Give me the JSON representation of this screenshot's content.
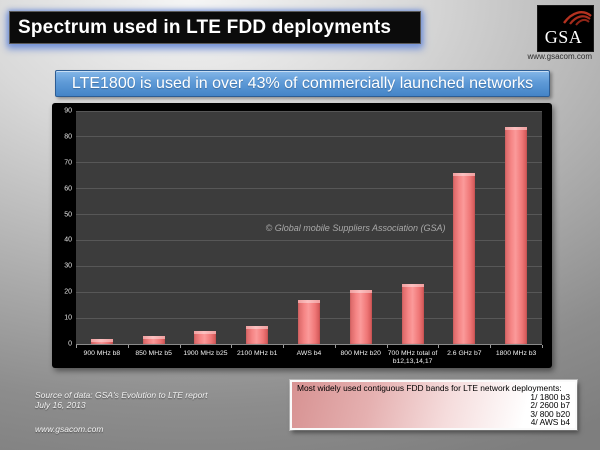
{
  "slide": {
    "title": "Spectrum used in LTE FDD deployments",
    "subtitle": "LTE1800 is used in over 43% of commercially launched networks",
    "logo": {
      "text": "GSA",
      "url": "www.gsacom.com"
    },
    "watermark": "© Global mobile Suppliers Association (GSA)",
    "source_line1": "Source of data: GSA's Evolution to LTE report",
    "source_line2": "July 16, 2013",
    "source_url": "www.gsacom.com",
    "info_box": {
      "heading": "Most widely used contiguous FDD bands for LTE network deployments:",
      "items": [
        "1/ 1800 b3",
        "2/ 2600 b7",
        "3/ 800 b20",
        "4/ AWS b4"
      ]
    }
  },
  "chart_data": {
    "type": "bar",
    "categories": [
      "900 MHz b8",
      "850 MHz b5",
      "1900 MHz b25",
      "2100 MHz b1",
      "AWS b4",
      "800 MHz b20",
      "700 MHz total of b12,13,14,17",
      "2.6 GHz b7",
      "1800 MHz b3"
    ],
    "values": [
      2,
      3,
      5,
      7,
      17,
      21,
      23,
      66,
      84
    ],
    "title": "",
    "xlabel": "",
    "ylabel": "",
    "ylim": [
      0,
      90
    ],
    "ytick_interval": 10,
    "grid": true,
    "legend_position": "none",
    "plot_bg": "#3c3c3c",
    "panel_bg": "#000000",
    "bar_color": "#f08080"
  },
  "colors": {
    "accent_blue": "#5e9ad7",
    "bar_pink": "#f08080",
    "infobox_pink": "#d79292",
    "title_glow": "#7391d7"
  }
}
